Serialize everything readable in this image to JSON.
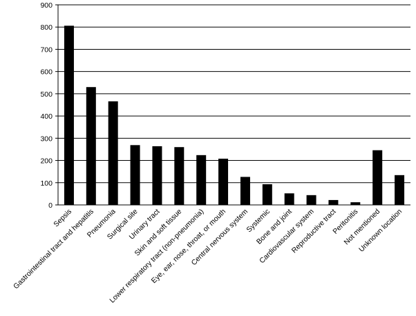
{
  "chart_data": {
    "type": "bar",
    "categories": [
      "Sepsis",
      "Gastrointestinal tract and hepatitis",
      "Pneumonia",
      "Surgical site",
      "Urinary tract",
      "Skin and soft tissue",
      "Lower respiratory tract (non-pneumonia)",
      "Eye, ear, nose, throat, or mouth",
      "Central nervous system",
      "Systemic",
      "Bone and joint",
      "Cardiovascular system",
      "Reproductive tract",
      "Peritonitis",
      "Not mentioned",
      "Unknown location"
    ],
    "values": [
      806,
      530,
      466,
      269,
      264,
      260,
      224,
      208,
      126,
      93,
      52,
      44,
      22,
      12,
      246,
      134
    ],
    "color": "#000000",
    "ylim": [
      0,
      900
    ],
    "yticks": [
      0,
      100,
      200,
      300,
      400,
      500,
      600,
      700,
      800,
      900
    ],
    "grid": true
  }
}
